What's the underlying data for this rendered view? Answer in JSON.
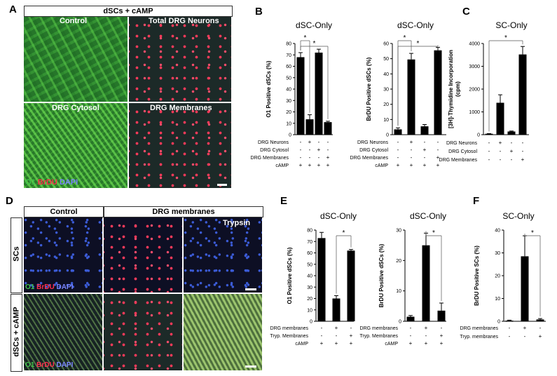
{
  "panel_letters": {
    "a": "A",
    "b": "B",
    "c": "C",
    "d": "D",
    "e": "E",
    "f": "F"
  },
  "panelA": {
    "header": "dSCs + cAMP",
    "labels": [
      "Control",
      "Total DRG Neurons",
      "DRG Cytosol",
      "DRG Membranes"
    ],
    "legend": {
      "o1": "O1",
      "brdu": "BrDU",
      "dapi": "DAPI"
    }
  },
  "panelD": {
    "col_control": "Control",
    "col_membranes": "DRG membranes",
    "trypsin": "Trypsin",
    "row_scs": "SCs",
    "row_dscs": "dSCs + cAMP",
    "legend": {
      "o1": "O1",
      "brdu": "BrDU",
      "dapi": "DAPI"
    }
  },
  "colors": {
    "bar": "#000000",
    "green": "#3fc24a",
    "red": "#ff2e4c",
    "blue": "#7a86ff"
  },
  "chart_data": [
    {
      "id": "B1",
      "type": "bar",
      "title": "dSC-Only",
      "ylabel": "O1  Positive dSCs (%)",
      "ylim": [
        0,
        80
      ],
      "yticks": [
        0,
        10,
        20,
        30,
        40,
        50,
        60,
        70,
        80
      ],
      "values": [
        68,
        13.5,
        72,
        11
      ],
      "errors": [
        4,
        4,
        3,
        0.8
      ],
      "rows": [
        {
          "label": "DRG Neurons",
          "marks": [
            "-",
            "+",
            "-",
            "-"
          ]
        },
        {
          "label": "DRG Cytosol",
          "marks": [
            "-",
            "-",
            "+",
            "-"
          ]
        },
        {
          "label": "DRG Membranes",
          "marks": [
            "-",
            "-",
            "-",
            "+"
          ]
        },
        {
          "label": "cAMP",
          "marks": [
            "+",
            "+",
            "+",
            "+"
          ]
        }
      ],
      "sig": [
        [
          0,
          1
        ],
        [
          0,
          3
        ]
      ],
      "sig_label": "*"
    },
    {
      "id": "B2",
      "type": "bar",
      "title": "dSC-Only",
      "ylabel": "BrDU Positive dSCs (%)",
      "ylim": [
        0,
        60
      ],
      "yticks": [
        0,
        10,
        20,
        30,
        40,
        50,
        60
      ],
      "values": [
        3.5,
        49.5,
        5.5,
        55.5
      ],
      "errors": [
        1,
        4,
        1.2,
        2
      ],
      "rows": [
        {
          "label": "DRG Neurons",
          "marks": [
            "-",
            "+",
            "-",
            "-"
          ]
        },
        {
          "label": "DRG Cytosol",
          "marks": [
            "-",
            "-",
            "+",
            "-"
          ]
        },
        {
          "label": "DRG Membranes",
          "marks": [
            "-",
            "-",
            "-",
            "+"
          ]
        },
        {
          "label": "cAMP",
          "marks": [
            "+",
            "+",
            "+",
            "+"
          ]
        }
      ],
      "sig": [
        [
          0,
          1
        ],
        [
          0,
          3
        ]
      ],
      "sig_label": "*"
    },
    {
      "id": "C",
      "type": "bar",
      "title": "SC-Only",
      "ylabel": "[3H]-Thymidine Incorporation (cpm)",
      "ylabel_lines": [
        "[3H]-Thymidine Incorporation",
        "(cpm)"
      ],
      "ylim": [
        0,
        4000
      ],
      "yticks": [
        0,
        1000,
        2000,
        3000,
        4000
      ],
      "values": [
        40,
        1400,
        140,
        3520
      ],
      "errors": [
        10,
        350,
        20,
        350
      ],
      "rows": [
        {
          "label": "DRG Neurons",
          "marks": [
            "-",
            "+",
            "-",
            "-"
          ]
        },
        {
          "label": "DRG Cytosol",
          "marks": [
            "-",
            "-",
            "+",
            "-"
          ]
        },
        {
          "label": "DRG Membranes",
          "marks": [
            "-",
            "-",
            "-",
            "+"
          ]
        }
      ],
      "sig": [
        [
          0,
          3
        ]
      ],
      "sig_label": "*"
    },
    {
      "id": "E1",
      "type": "bar",
      "title": "dSC-Only",
      "ylabel": "O1 Positive dSCs (%)",
      "ylim": [
        0,
        80
      ],
      "yticks": [
        0,
        10,
        20,
        30,
        40,
        50,
        60,
        70,
        80
      ],
      "values": [
        73,
        20,
        62
      ],
      "errors": [
        5,
        2.5,
        1
      ],
      "rows": [
        {
          "label": "DRG membranes",
          "marks": [
            "-",
            "+",
            "-"
          ]
        },
        {
          "label": "Tryp. Membranes",
          "marks": [
            "-",
            "-",
            "+"
          ]
        },
        {
          "label": "cAMP",
          "marks": [
            "+",
            "+",
            "+"
          ]
        }
      ],
      "sig": [
        [
          1,
          2
        ]
      ],
      "sig_label": "*"
    },
    {
      "id": "E2",
      "type": "bar",
      "title": "dSC-Only",
      "ylabel": "BrDU Positive dSCs (%)",
      "ylim": [
        0,
        30
      ],
      "yticks": [
        0,
        10,
        20,
        30
      ],
      "values": [
        1.5,
        25,
        3.5
      ],
      "errors": [
        0.4,
        4,
        2.5
      ],
      "rows": [
        {
          "label": "DRG membranes",
          "marks": [
            "-",
            "+",
            "-"
          ]
        },
        {
          "label": "Tryp. Membranes",
          "marks": [
            "-",
            "-",
            "+"
          ]
        },
        {
          "label": "cAMP",
          "marks": [
            "+",
            "+",
            "+"
          ]
        }
      ],
      "sig": [
        [
          1,
          2
        ]
      ],
      "sig_label": "*"
    },
    {
      "id": "F",
      "type": "bar",
      "title": "SC-Only",
      "ylabel": "BrDU Positive SCs (%)",
      "ylim": [
        0,
        40
      ],
      "yticks": [
        0,
        10,
        20,
        30,
        40
      ],
      "values": [
        0.3,
        28.5,
        0.8
      ],
      "errors": [
        0.2,
        9,
        0.4
      ],
      "rows": [
        {
          "label": "DRG membranes",
          "marks": [
            "-",
            "+",
            "-"
          ]
        },
        {
          "label": "Tryp. membranes",
          "marks": [
            "-",
            "-",
            "+"
          ]
        }
      ],
      "sig": [
        [
          1,
          2
        ]
      ],
      "sig_label": "*"
    }
  ]
}
